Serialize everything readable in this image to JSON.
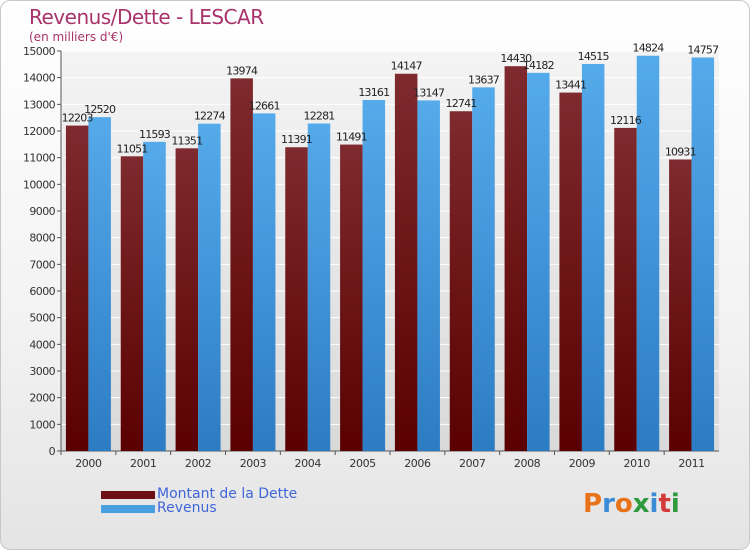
{
  "header": {
    "title": "Revenus/Dette - LESCAR",
    "subtitle": "(en milliers d'€)"
  },
  "legend": [
    {
      "label": "Montant de la Dette",
      "color": "#6b0f12"
    },
    {
      "label": "Revenus",
      "color": "#4a9fe0"
    }
  ],
  "logo": {
    "text": "Proxiti",
    "letters": [
      {
        "ch": "P",
        "color": "#e8731a"
      },
      {
        "ch": "r",
        "color": "#3a8ad6"
      },
      {
        "ch": "o",
        "color": "#e8731a"
      },
      {
        "ch": "x",
        "color": "#2e9a3c"
      },
      {
        "ch": "i",
        "color": "#3a8ad6"
      },
      {
        "ch": "t",
        "color": "#d43a3a"
      },
      {
        "ch": "i",
        "color": "#2e9a3c"
      }
    ]
  },
  "chart_data": {
    "type": "bar",
    "title": "Revenus/Dette - LESCAR",
    "subtitle": "(en milliers d'€)",
    "categories": [
      "2000",
      "2001",
      "2002",
      "2003",
      "2004",
      "2005",
      "2006",
      "2007",
      "2008",
      "2009",
      "2010",
      "2011"
    ],
    "ylim": [
      0,
      15000
    ],
    "yticks": [
      0,
      1000,
      2000,
      3000,
      4000,
      5000,
      6000,
      7000,
      8000,
      9000,
      10000,
      11000,
      12000,
      13000,
      14000,
      15000
    ],
    "grid": true,
    "legend_position": "bottom-left",
    "series": [
      {
        "name": "Montant de la Dette",
        "color": "#6b0f12",
        "values": [
          12203,
          11051,
          11351,
          13974,
          11391,
          11491,
          14147,
          12741,
          14430,
          13441,
          12116,
          10931
        ],
        "labels": [
          "12203",
          "11051",
          "11351",
          "13974",
          "11391",
          "11491",
          "14147",
          "12741",
          "14430",
          "13441",
          "12116",
          "10931"
        ]
      },
      {
        "name": "Revenus",
        "color": "#4a9fe0",
        "values": [
          12520,
          11593,
          12274,
          12661,
          12281,
          13161,
          13147,
          13637,
          14182,
          14515,
          14824,
          14757
        ],
        "labels": [
          "12520",
          "11593",
          "12274",
          "12661",
          "12281",
          "13161",
          "13147",
          "13637",
          "14182",
          "14515",
          "14824",
          "14757"
        ]
      }
    ]
  }
}
